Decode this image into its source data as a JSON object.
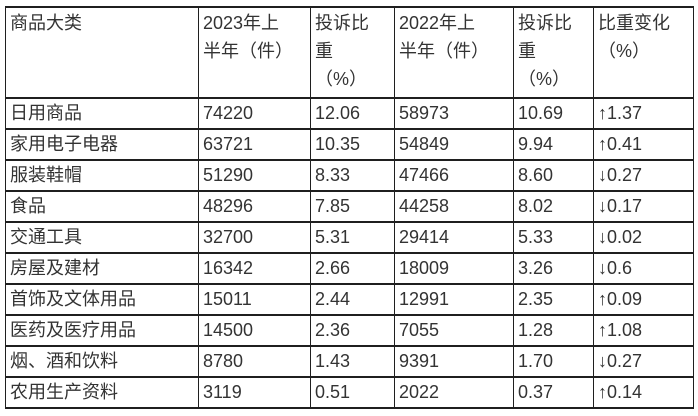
{
  "table": {
    "header_labels": [
      "商品大类",
      "2023年上\n半年（件）",
      "投诉比\n重\n（%）",
      "2022年上\n半年（件）",
      "投诉比\n重\n（%）",
      "比重变化\n（%）"
    ],
    "rows": [
      [
        "日用商品",
        "74220",
        "12.06",
        "58973",
        "10.69",
        "↑1.37"
      ],
      [
        "家用电子电器",
        "63721",
        "10.35",
        "54849",
        "9.94",
        "↑0.41"
      ],
      [
        "服装鞋帽",
        "51290",
        "8.33",
        "47466",
        "8.60",
        "↓0.27"
      ],
      [
        "食品",
        "48296",
        "7.85",
        "44258",
        "8.02",
        "↓0.17"
      ],
      [
        "交通工具",
        "32700",
        "5.31",
        "29414",
        "5.33",
        "↓0.02"
      ],
      [
        "房屋及建材",
        "16342",
        "2.66",
        "18009",
        "3.26",
        "↓0.6"
      ],
      [
        "首饰及文体用品",
        "15011",
        "2.44",
        "12991",
        "2.35",
        "↑0.09"
      ],
      [
        "医药及医疗用品",
        "14500",
        "2.36",
        "7055",
        "1.28",
        "↑1.08"
      ],
      [
        "烟、酒和饮料",
        "8780",
        "1.43",
        "9391",
        "1.70",
        "↓0.27"
      ],
      [
        "农用生产资料",
        "3119",
        "0.51",
        "2022",
        "0.37",
        "↑0.14"
      ]
    ],
    "colors": {
      "text": "#333333",
      "border": "#1f1f1f",
      "background": "#ffffff"
    }
  },
  "chart_data": {
    "type": "table",
    "columns": [
      "商品大类",
      "2023年上半年（件）",
      "投诉比重（%）",
      "2022年上半年（件）",
      "投诉比重（%）",
      "比重变化（%）"
    ],
    "rows": [
      {
        "category": "日用商品",
        "h1_2023_count": 74220,
        "h1_2023_share_pct": 12.06,
        "h1_2022_count": 58973,
        "h1_2022_share_pct": 10.69,
        "share_change_pct": 1.37,
        "change_direction": "up"
      },
      {
        "category": "家用电子电器",
        "h1_2023_count": 63721,
        "h1_2023_share_pct": 10.35,
        "h1_2022_count": 54849,
        "h1_2022_share_pct": 9.94,
        "share_change_pct": 0.41,
        "change_direction": "up"
      },
      {
        "category": "服装鞋帽",
        "h1_2023_count": 51290,
        "h1_2023_share_pct": 8.33,
        "h1_2022_count": 47466,
        "h1_2022_share_pct": 8.6,
        "share_change_pct": 0.27,
        "change_direction": "down"
      },
      {
        "category": "食品",
        "h1_2023_count": 48296,
        "h1_2023_share_pct": 7.85,
        "h1_2022_count": 44258,
        "h1_2022_share_pct": 8.02,
        "share_change_pct": 0.17,
        "change_direction": "down"
      },
      {
        "category": "交通工具",
        "h1_2023_count": 32700,
        "h1_2023_share_pct": 5.31,
        "h1_2022_count": 29414,
        "h1_2022_share_pct": 5.33,
        "share_change_pct": 0.02,
        "change_direction": "down"
      },
      {
        "category": "房屋及建材",
        "h1_2023_count": 16342,
        "h1_2023_share_pct": 2.66,
        "h1_2022_count": 18009,
        "h1_2022_share_pct": 3.26,
        "share_change_pct": 0.6,
        "change_direction": "down"
      },
      {
        "category": "首饰及文体用品",
        "h1_2023_count": 15011,
        "h1_2023_share_pct": 2.44,
        "h1_2022_count": 12991,
        "h1_2022_share_pct": 2.35,
        "share_change_pct": 0.09,
        "change_direction": "up"
      },
      {
        "category": "医药及医疗用品",
        "h1_2023_count": 14500,
        "h1_2023_share_pct": 2.36,
        "h1_2022_count": 7055,
        "h1_2022_share_pct": 1.28,
        "share_change_pct": 1.08,
        "change_direction": "up"
      },
      {
        "category": "烟、酒和饮料",
        "h1_2023_count": 8780,
        "h1_2023_share_pct": 1.43,
        "h1_2022_count": 9391,
        "h1_2022_share_pct": 1.7,
        "share_change_pct": 0.27,
        "change_direction": "down"
      },
      {
        "category": "农用生产资料",
        "h1_2023_count": 3119,
        "h1_2023_share_pct": 0.51,
        "h1_2022_count": 2022,
        "h1_2022_share_pct": 0.37,
        "share_change_pct": 0.14,
        "change_direction": "up"
      }
    ]
  }
}
